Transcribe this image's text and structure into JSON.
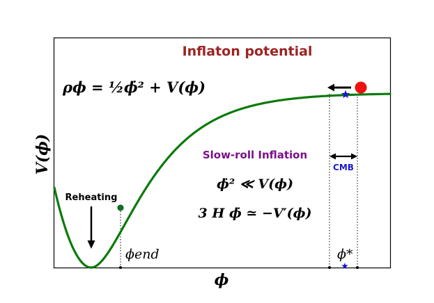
{
  "title": "Inflaton potential",
  "axes": {
    "xlabel": "ϕ",
    "ylabel": "V(ϕ)"
  },
  "equations": {
    "energy_density": "ρϕ = ½ϕ̇² + V(ϕ)",
    "slow_roll_condition": "ϕ̇² ≪ V(ϕ)",
    "slow_roll_eom": "3 H ϕ̇ ≃ −V′(ϕ)"
  },
  "labels": {
    "slow_roll": "Slow-roll Inflation",
    "reheating": "Reheating",
    "cmb": "CMB",
    "phi_end": "ϕend",
    "phi_star": "ϕ*"
  },
  "colors": {
    "curve": "#0a7a0a",
    "title": "#9b2423",
    "slow_roll": "#7b0f8a",
    "cmb": "#1a1acc",
    "ball": "#ee1111",
    "star": "#1a1acc"
  },
  "icons": {
    "ball": "red-circle",
    "star": "blue-star"
  }
}
